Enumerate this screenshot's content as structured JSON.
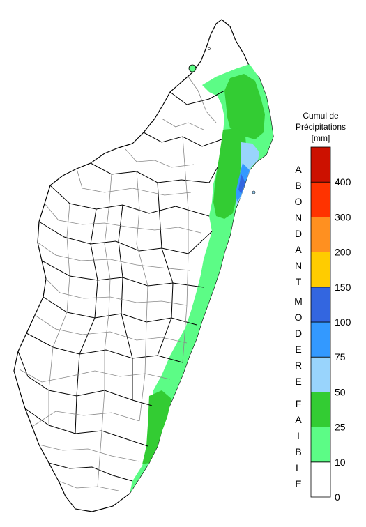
{
  "legend": {
    "title_lines": [
      "Cumul de",
      "Précipitations",
      "[mm]"
    ],
    "ticks": [
      "0",
      "10",
      "25",
      "50",
      "75",
      "100",
      "150",
      "200",
      "300",
      "400"
    ],
    "bins": [
      {
        "color": "#ffffff"
      },
      {
        "color": "#5cfc86"
      },
      {
        "color": "#33cc33"
      },
      {
        "color": "#99d4fc"
      },
      {
        "color": "#3399ff"
      },
      {
        "color": "#3366e0"
      },
      {
        "color": "#ffcc00"
      },
      {
        "color": "#ff9020"
      },
      {
        "color": "#ff3300"
      },
      {
        "color": "#cc1100"
      }
    ],
    "categories": [
      {
        "letters": [
          "A",
          "B",
          "O",
          "N",
          "D",
          "A",
          "N",
          "T"
        ]
      },
      {
        "letters": [
          "M",
          "O",
          "D",
          "E",
          "R",
          "E"
        ]
      },
      {
        "letters": [
          "F",
          "A",
          "I",
          "B",
          "L",
          "E"
        ]
      }
    ]
  },
  "map": {
    "land_color": "#ffffff",
    "region_border_color": "#000000",
    "district_border_color": "#888888"
  }
}
